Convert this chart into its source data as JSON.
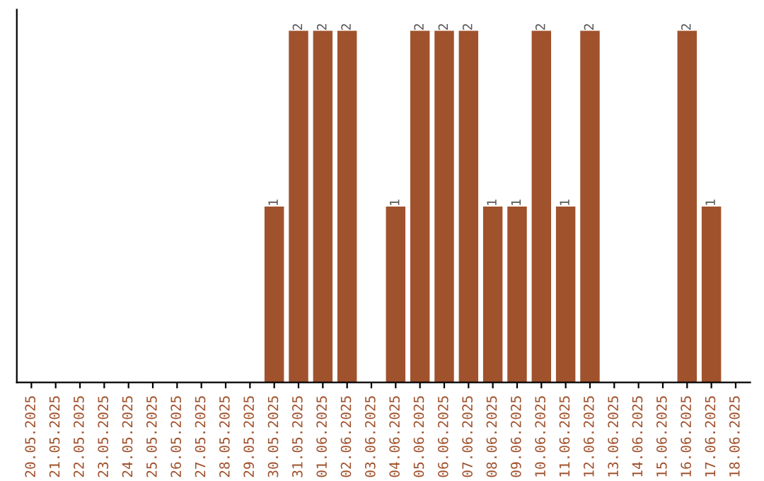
{
  "chart_data": {
    "type": "bar",
    "categories": [
      "20.05.2025",
      "21.05.2025",
      "22.05.2025",
      "23.05.2025",
      "24.05.2025",
      "25.05.2025",
      "26.05.2025",
      "27.05.2025",
      "28.05.2025",
      "29.05.2025",
      "30.05.2025",
      "31.05.2025",
      "01.06.2025",
      "02.06.2025",
      "03.06.2025",
      "04.06.2025",
      "05.06.2025",
      "06.06.2025",
      "07.06.2025",
      "08.06.2025",
      "09.06.2025",
      "10.06.2025",
      "11.06.2025",
      "12.06.2025",
      "13.06.2025",
      "14.06.2025",
      "15.06.2025",
      "16.06.2025",
      "17.06.2025",
      "18.06.2025"
    ],
    "values": [
      0,
      0,
      0,
      0,
      0,
      0,
      0,
      0,
      0,
      0,
      1,
      2,
      2,
      2,
      0,
      1,
      2,
      2,
      2,
      1,
      1,
      2,
      1,
      2,
      0,
      0,
      0,
      2,
      1,
      0
    ],
    "value_labels": [
      null,
      null,
      null,
      null,
      null,
      null,
      null,
      null,
      null,
      null,
      "1",
      "2",
      "2",
      "2",
      null,
      "1",
      "2",
      "2",
      "2",
      "1",
      "1",
      "2",
      "1",
      "2",
      null,
      null,
      null,
      "2",
      "1",
      null
    ],
    "color": "#a0522d",
    "tick_labels": "x",
    "grid": false,
    "legend": false
  }
}
